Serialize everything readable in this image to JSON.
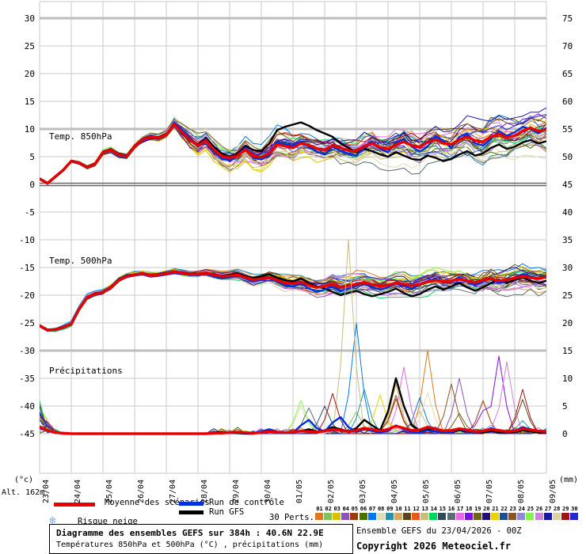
{
  "axes": {
    "left_unit": "(°c)",
    "right_unit": "(mm)",
    "alt_label": "Alt. 162m",
    "left_ticks": [
      30,
      25,
      20,
      15,
      10,
      5,
      0,
      -5,
      -10,
      -15,
      -20,
      -25,
      -30,
      -35,
      -40,
      -45
    ],
    "right_ticks": [
      75,
      70,
      65,
      60,
      55,
      50,
      45,
      40,
      35,
      30,
      25,
      20,
      15,
      10,
      5,
      0
    ],
    "x_labels": [
      "23/04",
      "24/04",
      "25/04",
      "26/04",
      "27/04",
      "28/04",
      "29/04",
      "30/04",
      "01/05",
      "02/05",
      "03/05",
      "04/05",
      "05/05",
      "06/05",
      "07/05",
      "08/05",
      "09/05"
    ]
  },
  "chart_config": {
    "grid_color": "#c9c9c9",
    "strong_grid_color": "#bdbdbd",
    "zero_line_color": "#686868",
    "strong_left_values": [
      30,
      10,
      -30
    ],
    "mean_color": "#e80000",
    "control_color": "#0030dd",
    "gfs_color": "#000000"
  },
  "chart_data": [
    {
      "type": "line",
      "id": "temp850",
      "label": "Temp. 850hPa",
      "kind": "temp",
      "step_hours": 6,
      "mean": [
        1.0,
        0.2,
        1.4,
        2.6,
        4.2,
        3.9,
        3.1,
        3.7,
        5.8,
        6.3,
        5.4,
        5.1,
        6.9,
        8.1,
        8.6,
        8.4,
        9.0,
        10.9,
        9.4,
        8.0,
        7.0,
        7.9,
        6.3,
        5.1,
        4.8,
        5.2,
        6.3,
        5.1,
        4.9,
        5.6,
        7.2,
        6.9,
        6.6,
        7.4,
        7.1,
        6.5,
        6.2,
        7.0,
        6.6,
        6.1,
        6.0,
        6.9,
        7.4,
        6.7,
        6.4,
        7.2,
        7.7,
        7.0,
        6.7,
        7.6,
        8.1,
        7.4,
        7.2,
        8.1,
        8.6,
        7.9,
        7.7,
        8.6,
        9.1,
        8.5,
        8.8,
        9.6,
        10.2,
        9.6,
        9.9
      ],
      "control": [
        1.0,
        0.1,
        1.3,
        2.5,
        4.1,
        3.8,
        3.0,
        3.6,
        5.7,
        6.2,
        5.2,
        4.9,
        6.8,
        8.0,
        8.5,
        8.2,
        8.9,
        11.2,
        9.8,
        8.3,
        6.8,
        8.2,
        6.0,
        4.6,
        4.4,
        5.3,
        6.6,
        4.8,
        4.5,
        5.2,
        7.6,
        7.2,
        6.9,
        7.8,
        6.8,
        5.9,
        5.4,
        6.8,
        6.0,
        5.6,
        5.2,
        6.6,
        7.8,
        6.4,
        5.8,
        7.6,
        8.2,
        6.8,
        5.9,
        6.8,
        8.8,
        7.8,
        6.6,
        8.6,
        9.2,
        7.4,
        7.0,
        8.2,
        9.6,
        8.8,
        9.4,
        10.4,
        10.0,
        9.2,
        10.2
      ],
      "gfs": [
        1.1,
        0.3,
        1.5,
        2.7,
        4.3,
        4.0,
        3.2,
        3.8,
        5.9,
        6.4,
        5.5,
        5.2,
        7.0,
        8.2,
        8.7,
        8.5,
        9.1,
        11.0,
        9.2,
        7.8,
        7.2,
        8.4,
        6.8,
        5.6,
        5.0,
        5.6,
        7.0,
        6.2,
        6.0,
        7.4,
        9.8,
        10.4,
        10.8,
        11.2,
        10.6,
        9.8,
        9.2,
        8.6,
        7.4,
        6.6,
        5.8,
        6.4,
        6.0,
        5.4,
        5.0,
        5.8,
        5.2,
        4.6,
        4.4,
        5.2,
        4.8,
        4.2,
        4.6,
        5.4,
        6.0,
        5.2,
        5.6,
        6.6,
        7.2,
        6.4,
        6.8,
        7.6,
        8.0,
        7.4,
        7.8
      ],
      "spread_daily": [
        0.3,
        0.4,
        0.5,
        0.7,
        0.9,
        2.6,
        2.8,
        3.0,
        3.0,
        3.0,
        3.2,
        3.2,
        3.4,
        3.5,
        3.8,
        4.2,
        4.6
      ]
    },
    {
      "type": "line",
      "id": "temp500",
      "label": "Temp. 500hPa",
      "kind": "temp",
      "step_hours": 6,
      "mean": [
        -25.5,
        -26.3,
        -26.2,
        -25.8,
        -25.2,
        -22.5,
        -20.4,
        -19.8,
        -19.5,
        -18.6,
        -17.3,
        -16.6,
        -16.3,
        -16.1,
        -16.4,
        -16.3,
        -16.1,
        -15.8,
        -16.0,
        -16.2,
        -16.2,
        -16.0,
        -16.3,
        -16.6,
        -16.5,
        -16.3,
        -16.8,
        -17.2,
        -17.0,
        -16.8,
        -17.3,
        -17.8,
        -17.9,
        -17.6,
        -18.2,
        -18.6,
        -18.4,
        -18.0,
        -18.6,
        -18.3,
        -18.0,
        -17.7,
        -18.1,
        -18.4,
        -18.2,
        -17.8,
        -18.0,
        -18.3,
        -18.0,
        -17.6,
        -17.3,
        -17.6,
        -17.4,
        -17.1,
        -17.4,
        -17.7,
        -17.3,
        -17.0,
        -17.4,
        -17.2,
        -16.9,
        -16.6,
        -16.8,
        -17.0,
        -16.7
      ],
      "control": [
        -25.6,
        -26.4,
        -26.3,
        -25.9,
        -25.3,
        -22.6,
        -20.5,
        -19.9,
        -19.6,
        -18.7,
        -17.4,
        -16.7,
        -16.4,
        -16.2,
        -16.5,
        -16.4,
        -16.2,
        -15.9,
        -16.1,
        -16.3,
        -16.4,
        -16.1,
        -16.5,
        -16.9,
        -16.7,
        -16.4,
        -17.0,
        -17.5,
        -17.2,
        -16.9,
        -17.6,
        -18.2,
        -18.4,
        -17.9,
        -18.8,
        -19.4,
        -19.0,
        -18.3,
        -19.2,
        -18.8,
        -18.3,
        -17.8,
        -18.5,
        -19.0,
        -18.6,
        -17.9,
        -18.3,
        -18.8,
        -18.2,
        -17.5,
        -17.0,
        -17.8,
        -17.4,
        -16.8,
        -17.6,
        -18.2,
        -17.6,
        -16.9,
        -17.8,
        -17.4,
        -16.8,
        -16.2,
        -16.6,
        -17.0,
        -16.4
      ],
      "gfs": [
        -25.4,
        -26.2,
        -26.1,
        -25.7,
        -25.1,
        -22.4,
        -20.3,
        -19.7,
        -19.4,
        -18.5,
        -17.2,
        -16.5,
        -16.2,
        -16.0,
        -16.3,
        -16.2,
        -16.0,
        -15.7,
        -15.9,
        -16.1,
        -16.1,
        -15.9,
        -16.2,
        -16.5,
        -16.3,
        -16.0,
        -16.5,
        -16.9,
        -16.6,
        -16.2,
        -16.8,
        -17.3,
        -17.5,
        -17.0,
        -17.8,
        -18.4,
        -18.8,
        -19.4,
        -20.0,
        -19.6,
        -19.2,
        -19.8,
        -20.2,
        -19.8,
        -19.4,
        -18.8,
        -19.6,
        -20.2,
        -19.8,
        -19.0,
        -18.4,
        -19.0,
        -18.4,
        -17.8,
        -18.6,
        -19.2,
        -18.6,
        -17.8,
        -17.2,
        -17.8,
        -17.2,
        -16.8,
        -17.4,
        -17.8,
        -17.4
      ],
      "spread_daily": [
        0.4,
        0.8,
        0.6,
        0.5,
        0.5,
        0.8,
        1.0,
        1.3,
        1.6,
        1.9,
        2.1,
        2.3,
        2.5,
        2.7,
        2.9,
        3.1,
        3.3
      ]
    },
    {
      "type": "line",
      "id": "precip",
      "label": "Précipitations",
      "kind": "precip",
      "step_hours": 6,
      "mean": [
        1.2,
        0.6,
        0.2,
        0.1,
        0,
        0,
        0,
        0,
        0,
        0,
        0,
        0,
        0,
        0,
        0,
        0,
        0,
        0,
        0,
        0,
        0,
        0,
        0.1,
        0.1,
        0.2,
        0.3,
        0.2,
        0.1,
        0.2,
        0.4,
        0.3,
        0.2,
        0.3,
        0.5,
        0.4,
        0.3,
        0.5,
        0.8,
        0.6,
        0.4,
        0.6,
        1.0,
        0.8,
        0.5,
        0.8,
        1.4,
        1.0,
        0.6,
        0.7,
        1.2,
        0.9,
        0.5,
        0.6,
        0.9,
        0.7,
        0.4,
        0.5,
        0.8,
        0.6,
        0.4,
        0.5,
        0.9,
        0.7,
        0.5,
        0.4
      ],
      "control": [
        1.0,
        0.5,
        0.2,
        0,
        0,
        0,
        0,
        0,
        0,
        0,
        0,
        0,
        0,
        0,
        0,
        0,
        0,
        0,
        0,
        0,
        0,
        0,
        0,
        0.2,
        0.3,
        0.2,
        0.1,
        0,
        0.4,
        0.8,
        0.4,
        0.1,
        0.2,
        1.5,
        2.5,
        1.0,
        0.4,
        2.0,
        3.0,
        1.2,
        0.3,
        0.8,
        0.5,
        0.2,
        0.5,
        1.5,
        0.8,
        0.3,
        0.2,
        0.6,
        0.4,
        0.2,
        0.3,
        0.8,
        0.5,
        0.2,
        0.4,
        1.0,
        0.6,
        0.3,
        0.5,
        1.2,
        0.8,
        0.4,
        0.3
      ],
      "gfs": [
        1.1,
        0.5,
        0.2,
        0,
        0,
        0,
        0,
        0,
        0,
        0,
        0,
        0,
        0,
        0,
        0,
        0,
        0,
        0,
        0,
        0,
        0,
        0,
        0.2,
        0.3,
        0.2,
        0.1,
        0,
        0,
        0.3,
        0.6,
        0.3,
        0.1,
        0.2,
        0.5,
        0.8,
        0.4,
        0.6,
        1.2,
        0.8,
        0.4,
        1.0,
        2.5,
        1.5,
        0.6,
        4.0,
        10.0,
        5.0,
        1.5,
        0.5,
        0.8,
        0.4,
        0.2,
        0.3,
        0.6,
        0.4,
        0.2,
        0.2,
        0.5,
        0.3,
        0.2,
        0.3,
        0.6,
        0.4,
        0.2,
        0.2
      ],
      "init_event": [
        6,
        2.5,
        0.8,
        0
      ],
      "spikes": [
        {
          "m": 12,
          "t": 39,
          "v": 35
        },
        {
          "m": 6,
          "t": 40,
          "v": 20
        },
        {
          "m": 16,
          "t": 46,
          "v": 12
        },
        {
          "m": 0,
          "t": 49,
          "v": 15
        },
        {
          "m": 17,
          "t": 58,
          "v": 14
        },
        {
          "m": 25,
          "t": 59,
          "v": 13
        },
        {
          "m": 22,
          "t": 52,
          "v": 9
        },
        {
          "m": 8,
          "t": 41,
          "v": 8
        },
        {
          "m": 20,
          "t": 43,
          "v": 7
        },
        {
          "m": 24,
          "t": 33,
          "v": 6
        },
        {
          "m": 4,
          "t": 56,
          "v": 6
        },
        {
          "m": 28,
          "t": 61,
          "v": 8
        },
        {
          "m": 14,
          "t": 36,
          "v": 5
        },
        {
          "m": 3,
          "t": 53,
          "v": 10
        },
        {
          "m": 9,
          "t": 45,
          "v": 9
        }
      ]
    }
  ],
  "legend": {
    "mean_label": "Moyenne des scénarios",
    "control_label": "Run de contrôle",
    "gfs_label": "Run GFS",
    "perts_label": "30 Perts.",
    "snow_label": "Risque neige",
    "snow_icon": "❄",
    "member_ids": [
      "01",
      "02",
      "03",
      "04",
      "05",
      "06",
      "07",
      "08",
      "09",
      "10",
      "11",
      "12",
      "13",
      "14",
      "15",
      "16",
      "17",
      "18",
      "19",
      "20",
      "21",
      "22",
      "23",
      "24",
      "25",
      "26",
      "27",
      "28",
      "29",
      "30"
    ],
    "member_colors": [
      "#e07820",
      "#7ec460",
      "#dcc000",
      "#8a55b8",
      "#a03910",
      "#4a7000",
      "#0078f0",
      "#e4dcb4",
      "#2890a8",
      "#d8a858",
      "#5c4418",
      "#e85818",
      "#ccbc7c",
      "#00d860",
      "#2c4c5c",
      "#5c6c74",
      "#e868e8",
      "#7c10e0",
      "#6c6418",
      "#241070",
      "#e8d400",
      "#1c5090",
      "#8a5424",
      "#9488dc",
      "#84f448",
      "#cc84d8",
      "#1818a8",
      "#dcd0a4",
      "#a01414",
      "#2428cc"
    ]
  },
  "footer": {
    "title": "Diagramme des ensembles GEFS sur 384h : 40.6N 22.9E",
    "subtitle": "Températures 850hPa et 500hPa (°C) , précipitations (mm)",
    "run_info": "Ensemble GEFS du 23/04/2026 - 00Z",
    "copyright": "Copyright 2026 Meteociel.fr"
  }
}
